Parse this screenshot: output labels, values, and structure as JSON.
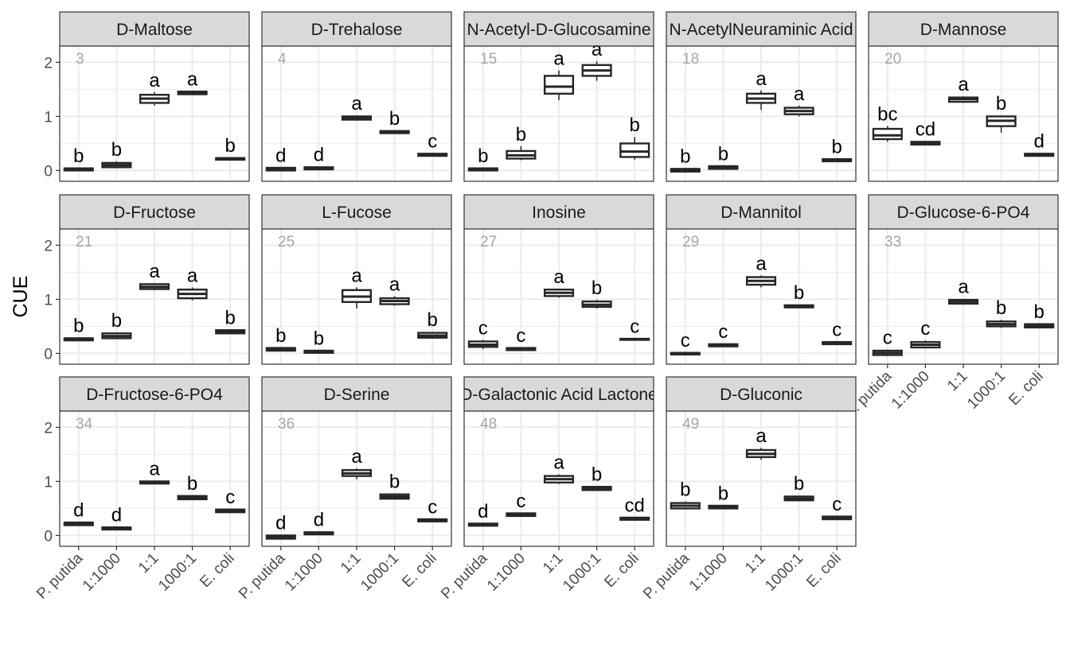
{
  "chart_data": {
    "type": "box",
    "ylabel": "CUE",
    "ylim": [
      -0.2,
      2.3
    ],
    "yticks": [
      0,
      1,
      2
    ],
    "categories": [
      "P. putida",
      "1:1000",
      "1:1",
      "1000:1",
      "E. coli"
    ],
    "grid": true,
    "colors": {
      "panel_border": "#333333",
      "strip_fill": "#d9d9d9",
      "grid": "#ebebeb",
      "box": "#262626",
      "number": "#a6a6a6"
    },
    "panels": [
      {
        "title": "D-Maltose",
        "number": "3",
        "boxes": [
          {
            "q1": 0.0,
            "med": 0.02,
            "q3": 0.04,
            "lo": -0.01,
            "hi": 0.05
          },
          {
            "q1": 0.06,
            "med": 0.1,
            "q3": 0.14,
            "lo": 0.04,
            "hi": 0.17
          },
          {
            "q1": 1.25,
            "med": 1.33,
            "q3": 1.4,
            "lo": 1.2,
            "hi": 1.45
          },
          {
            "q1": 1.41,
            "med": 1.43,
            "q3": 1.46,
            "lo": 1.4,
            "hi": 1.47
          },
          {
            "q1": 0.2,
            "med": 0.21,
            "q3": 0.23,
            "lo": 0.19,
            "hi": 0.24
          }
        ],
        "letters": [
          "b",
          "b",
          "a",
          "a",
          "b"
        ]
      },
      {
        "title": "D-Trehalose",
        "number": "4",
        "boxes": [
          {
            "q1": 0.0,
            "med": 0.02,
            "q3": 0.05,
            "lo": -0.01,
            "hi": 0.06
          },
          {
            "q1": 0.02,
            "med": 0.04,
            "q3": 0.06,
            "lo": 0.01,
            "hi": 0.07
          },
          {
            "q1": 0.94,
            "med": 0.97,
            "q3": 1.0,
            "lo": 0.93,
            "hi": 1.02
          },
          {
            "q1": 0.69,
            "med": 0.71,
            "q3": 0.73,
            "lo": 0.68,
            "hi": 0.74
          },
          {
            "q1": 0.27,
            "med": 0.29,
            "q3": 0.31,
            "lo": 0.26,
            "hi": 0.32
          }
        ],
        "letters": [
          "d",
          "d",
          "a",
          "b",
          "c"
        ]
      },
      {
        "title": "N-Acetyl-D-Glucosamine",
        "number": "15",
        "boxes": [
          {
            "q1": 0.0,
            "med": 0.02,
            "q3": 0.04,
            "lo": -0.01,
            "hi": 0.05
          },
          {
            "q1": 0.22,
            "med": 0.28,
            "q3": 0.36,
            "lo": 0.19,
            "hi": 0.45
          },
          {
            "q1": 1.42,
            "med": 1.55,
            "q3": 1.75,
            "lo": 1.3,
            "hi": 1.85
          },
          {
            "q1": 1.75,
            "med": 1.85,
            "q3": 1.95,
            "lo": 1.66,
            "hi": 2.02
          },
          {
            "q1": 0.25,
            "med": 0.35,
            "q3": 0.5,
            "lo": 0.2,
            "hi": 0.62
          }
        ],
        "letters": [
          "b",
          "b",
          "a",
          "a",
          "b"
        ]
      },
      {
        "title": "N-AcetylNeuraminic Acid",
        "number": "18",
        "boxes": [
          {
            "q1": -0.02,
            "med": 0.0,
            "q3": 0.03,
            "lo": -0.04,
            "hi": 0.04
          },
          {
            "q1": 0.03,
            "med": 0.05,
            "q3": 0.08,
            "lo": 0.02,
            "hi": 0.09
          },
          {
            "q1": 1.25,
            "med": 1.33,
            "q3": 1.42,
            "lo": 1.12,
            "hi": 1.48
          },
          {
            "q1": 1.04,
            "med": 1.1,
            "q3": 1.16,
            "lo": 1.0,
            "hi": 1.2
          },
          {
            "q1": 0.17,
            "med": 0.19,
            "q3": 0.21,
            "lo": 0.16,
            "hi": 0.22
          }
        ],
        "letters": [
          "b",
          "b",
          "a",
          "a",
          "b"
        ]
      },
      {
        "title": "D-Mannose",
        "number": "20",
        "boxes": [
          {
            "q1": 0.58,
            "med": 0.65,
            "q3": 0.77,
            "lo": 0.53,
            "hi": 0.82
          },
          {
            "q1": 0.48,
            "med": 0.5,
            "q3": 0.53,
            "lo": 0.47,
            "hi": 0.54
          },
          {
            "q1": 1.27,
            "med": 1.32,
            "q3": 1.35,
            "lo": 1.25,
            "hi": 1.37
          },
          {
            "q1": 0.82,
            "med": 0.92,
            "q3": 1.0,
            "lo": 0.7,
            "hi": 1.02
          },
          {
            "q1": 0.27,
            "med": 0.29,
            "q3": 0.31,
            "lo": 0.26,
            "hi": 0.32
          }
        ],
        "letters": [
          "bc",
          "cd",
          "a",
          "b",
          "d"
        ]
      },
      {
        "title": "D-Fructose",
        "number": "21",
        "boxes": [
          {
            "q1": 0.24,
            "med": 0.26,
            "q3": 0.28,
            "lo": 0.23,
            "hi": 0.29
          },
          {
            "q1": 0.28,
            "med": 0.32,
            "q3": 0.37,
            "lo": 0.26,
            "hi": 0.39
          },
          {
            "q1": 1.19,
            "med": 1.23,
            "q3": 1.28,
            "lo": 1.17,
            "hi": 1.3
          },
          {
            "q1": 1.02,
            "med": 1.1,
            "q3": 1.18,
            "lo": 0.98,
            "hi": 1.22
          },
          {
            "q1": 0.37,
            "med": 0.4,
            "q3": 0.43,
            "lo": 0.36,
            "hi": 0.44
          }
        ],
        "letters": [
          "b",
          "b",
          "a",
          "a",
          "b"
        ]
      },
      {
        "title": "L-Fucose",
        "number": "25",
        "boxes": [
          {
            "q1": 0.05,
            "med": 0.07,
            "q3": 0.1,
            "lo": 0.04,
            "hi": 0.11
          },
          {
            "q1": 0.01,
            "med": 0.03,
            "q3": 0.05,
            "lo": 0.0,
            "hi": 0.06
          },
          {
            "q1": 0.95,
            "med": 1.05,
            "q3": 1.17,
            "lo": 0.83,
            "hi": 1.22
          },
          {
            "q1": 0.91,
            "med": 0.97,
            "q3": 1.02,
            "lo": 0.88,
            "hi": 1.06
          },
          {
            "q1": 0.29,
            "med": 0.33,
            "q3": 0.38,
            "lo": 0.27,
            "hi": 0.4
          }
        ],
        "letters": [
          "b",
          "b",
          "a",
          "a",
          "b"
        ]
      },
      {
        "title": "Inosine",
        "number": "27",
        "boxes": [
          {
            "q1": 0.12,
            "med": 0.16,
            "q3": 0.22,
            "lo": 0.08,
            "hi": 0.25
          },
          {
            "q1": 0.06,
            "med": 0.08,
            "q3": 0.1,
            "lo": 0.05,
            "hi": 0.11
          },
          {
            "q1": 1.06,
            "med": 1.12,
            "q3": 1.18,
            "lo": 1.03,
            "hi": 1.2
          },
          {
            "q1": 0.86,
            "med": 0.9,
            "q3": 0.96,
            "lo": 0.83,
            "hi": 0.99
          },
          {
            "q1": 0.25,
            "med": 0.26,
            "q3": 0.27,
            "lo": 0.24,
            "hi": 0.28
          }
        ],
        "letters": [
          "c",
          "c",
          "a",
          "b",
          "c"
        ]
      },
      {
        "title": "D-Mannitol",
        "number": "29",
        "boxes": [
          {
            "q1": -0.02,
            "med": 0.0,
            "q3": 0.01,
            "lo": -0.03,
            "hi": 0.02
          },
          {
            "q1": 0.13,
            "med": 0.15,
            "q3": 0.17,
            "lo": 0.12,
            "hi": 0.18
          },
          {
            "q1": 1.27,
            "med": 1.34,
            "q3": 1.41,
            "lo": 1.22,
            "hi": 1.44
          },
          {
            "q1": 0.85,
            "med": 0.87,
            "q3": 0.89,
            "lo": 0.84,
            "hi": 0.9
          },
          {
            "q1": 0.17,
            "med": 0.19,
            "q3": 0.21,
            "lo": 0.16,
            "hi": 0.22
          }
        ],
        "letters": [
          "c",
          "c",
          "a",
          "b",
          "c"
        ]
      },
      {
        "title": "D-Glucose-6-PO4",
        "number": "33",
        "boxes": [
          {
            "q1": -0.03,
            "med": 0.01,
            "q3": 0.05,
            "lo": -0.05,
            "hi": 0.07
          },
          {
            "q1": 0.11,
            "med": 0.16,
            "q3": 0.21,
            "lo": 0.09,
            "hi": 0.24
          },
          {
            "q1": 0.92,
            "med": 0.96,
            "q3": 0.99,
            "lo": 0.9,
            "hi": 1.01
          },
          {
            "q1": 0.5,
            "med": 0.54,
            "q3": 0.59,
            "lo": 0.47,
            "hi": 0.62
          },
          {
            "q1": 0.48,
            "med": 0.51,
            "q3": 0.54,
            "lo": 0.47,
            "hi": 0.55
          }
        ],
        "letters": [
          "c",
          "c",
          "a",
          "b",
          "b"
        ]
      },
      {
        "title": "D-Fructose-6-PO4",
        "number": "34",
        "boxes": [
          {
            "q1": 0.19,
            "med": 0.21,
            "q3": 0.24,
            "lo": 0.18,
            "hi": 0.25
          },
          {
            "q1": 0.11,
            "med": 0.13,
            "q3": 0.15,
            "lo": 0.1,
            "hi": 0.16
          },
          {
            "q1": 0.96,
            "med": 0.98,
            "q3": 1.0,
            "lo": 0.95,
            "hi": 1.01
          },
          {
            "q1": 0.67,
            "med": 0.7,
            "q3": 0.73,
            "lo": 0.66,
            "hi": 0.74
          },
          {
            "q1": 0.43,
            "med": 0.45,
            "q3": 0.48,
            "lo": 0.42,
            "hi": 0.49
          }
        ],
        "letters": [
          "d",
          "d",
          "a",
          "b",
          "c"
        ]
      },
      {
        "title": "D-Serine",
        "number": "36",
        "boxes": [
          {
            "q1": -0.06,
            "med": -0.03,
            "q3": 0.0,
            "lo": -0.07,
            "hi": 0.01
          },
          {
            "q1": 0.02,
            "med": 0.04,
            "q3": 0.06,
            "lo": 0.01,
            "hi": 0.07
          },
          {
            "q1": 1.1,
            "med": 1.15,
            "q3": 1.21,
            "lo": 1.04,
            "hi": 1.24
          },
          {
            "q1": 0.68,
            "med": 0.72,
            "q3": 0.76,
            "lo": 0.66,
            "hi": 0.78
          },
          {
            "q1": 0.26,
            "med": 0.28,
            "q3": 0.3,
            "lo": 0.25,
            "hi": 0.31
          }
        ],
        "letters": [
          "d",
          "d",
          "a",
          "b",
          "c"
        ]
      },
      {
        "title": "D-Galactonic Acid Lactone",
        "number": "48",
        "boxes": [
          {
            "q1": 0.18,
            "med": 0.2,
            "q3": 0.22,
            "lo": 0.17,
            "hi": 0.23
          },
          {
            "q1": 0.36,
            "med": 0.38,
            "q3": 0.41,
            "lo": 0.35,
            "hi": 0.42
          },
          {
            "q1": 0.98,
            "med": 1.04,
            "q3": 1.1,
            "lo": 0.95,
            "hi": 1.13
          },
          {
            "q1": 0.84,
            "med": 0.87,
            "q3": 0.9,
            "lo": 0.83,
            "hi": 0.91
          },
          {
            "q1": 0.29,
            "med": 0.31,
            "q3": 0.33,
            "lo": 0.28,
            "hi": 0.34
          }
        ],
        "letters": [
          "d",
          "c",
          "a",
          "b",
          "cd"
        ]
      },
      {
        "title": "D-Gluconic",
        "number": "49",
        "boxes": [
          {
            "q1": 0.5,
            "med": 0.55,
            "q3": 0.6,
            "lo": 0.48,
            "hi": 0.63
          },
          {
            "q1": 0.5,
            "med": 0.52,
            "q3": 0.55,
            "lo": 0.49,
            "hi": 0.56
          },
          {
            "q1": 1.45,
            "med": 1.51,
            "q3": 1.58,
            "lo": 1.4,
            "hi": 1.62
          },
          {
            "q1": 0.65,
            "med": 0.68,
            "q3": 0.72,
            "lo": 0.63,
            "hi": 0.74
          },
          {
            "q1": 0.3,
            "med": 0.32,
            "q3": 0.35,
            "lo": 0.29,
            "hi": 0.36
          }
        ],
        "letters": [
          "b",
          "b",
          "a",
          "b",
          "c"
        ]
      }
    ]
  }
}
